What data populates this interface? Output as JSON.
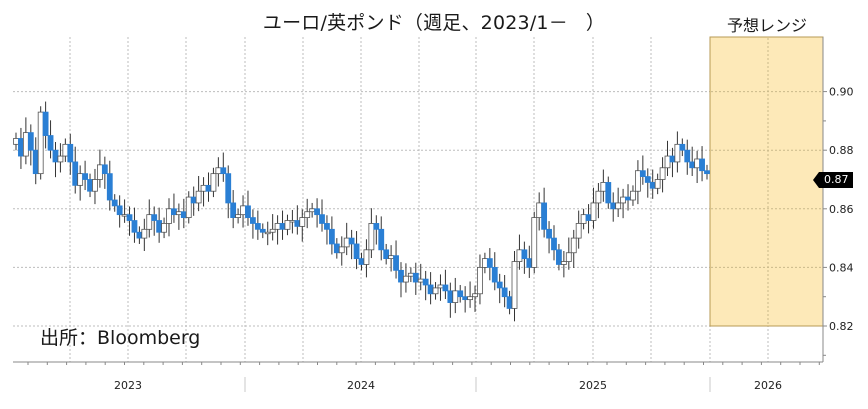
{
  "title": {
    "main": "ユーロ/英ポンド（週足、2023/1－",
    "close_paren": "）"
  },
  "forecast_label": "予想レンジ",
  "source": "出所：Bloomberg",
  "current_price_tag": "0.87",
  "colors": {
    "bear_fill": "#2a7fd4",
    "bull_fill": "#ffffff",
    "bull_stroke": "#555555",
    "wick": "#333333",
    "grid": "#bdbdbd",
    "forecast_fill": "#fde9b8",
    "forecast_border": "#b79a55",
    "axis": "#888888"
  },
  "chart_data": {
    "type": "candlestick",
    "title": "ユーロ/英ポンド（週足、2023/1－ ）",
    "xlabel": "",
    "ylabel": "",
    "y_ticks": [
      "0.82",
      "0.84",
      "0.86",
      "0.88",
      "0.90"
    ],
    "ylim": [
      0.815,
      0.917
    ],
    "x_labels": [
      "2023",
      "2024",
      "2025",
      "2026"
    ],
    "grid": true,
    "current_value": 0.87,
    "forecast_range": {
      "label": "予想レンジ",
      "low": 0.82,
      "high": 0.918,
      "period": "2025-Q4 to 2026"
    },
    "weekly_close_approx": [
      0.884,
      0.878,
      0.886,
      0.88,
      0.872,
      0.893,
      0.885,
      0.88,
      0.876,
      0.878,
      0.882,
      0.876,
      0.868,
      0.872,
      0.87,
      0.866,
      0.87,
      0.875,
      0.872,
      0.863,
      0.861,
      0.858,
      0.858,
      0.856,
      0.852,
      0.85,
      0.853,
      0.858,
      0.856,
      0.852,
      0.855,
      0.86,
      0.858,
      0.859,
      0.857,
      0.864,
      0.862,
      0.866,
      0.868,
      0.866,
      0.872,
      0.874,
      0.872,
      0.862,
      0.857,
      0.858,
      0.861,
      0.857,
      0.855,
      0.853,
      0.852,
      0.852,
      0.853,
      0.855,
      0.853,
      0.856,
      0.856,
      0.854,
      0.857,
      0.859,
      0.86,
      0.858,
      0.855,
      0.853,
      0.848,
      0.845,
      0.847,
      0.85,
      0.848,
      0.843,
      0.841,
      0.846,
      0.855,
      0.853,
      0.846,
      0.843,
      0.844,
      0.839,
      0.835,
      0.837,
      0.838,
      0.835,
      0.836,
      0.834,
      0.831,
      0.833,
      0.834,
      0.832,
      0.828,
      0.832,
      0.83,
      0.829,
      0.83,
      0.831,
      0.84,
      0.843,
      0.84,
      0.835,
      0.833,
      0.83,
      0.826,
      0.842,
      0.846,
      0.843,
      0.84,
      0.857,
      0.862,
      0.853,
      0.85,
      0.846,
      0.841,
      0.842,
      0.845,
      0.85,
      0.855,
      0.858,
      0.856,
      0.862,
      0.866,
      0.869,
      0.862,
      0.86,
      0.862,
      0.864,
      0.863,
      0.866,
      0.873,
      0.871,
      0.869,
      0.867,
      0.87,
      0.874,
      0.878,
      0.876,
      0.882,
      0.88,
      0.876,
      0.874,
      0.877,
      0.873,
      0.872
    ]
  }
}
